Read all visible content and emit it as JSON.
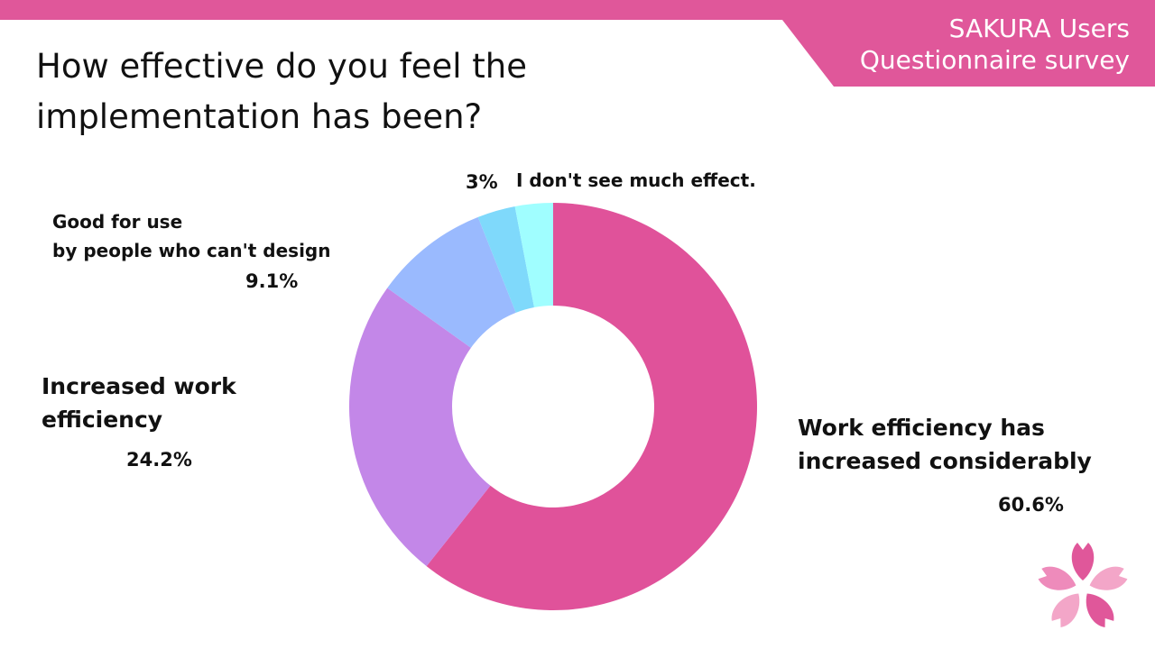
{
  "header": {
    "badge_line1": "SAKURA Users",
    "badge_line2": "Questionnaire survey",
    "title_line1": "How effective do you feel the",
    "title_line2": "implementation has been?"
  },
  "colors": {
    "brand": "#e0579a",
    "slice_considerable": "#e0529a",
    "slice_increased": "#c387e8",
    "slice_design": "#9abafe",
    "slice_small": "#7fd9fb",
    "slice_none": "#a0feff"
  },
  "chart_data": {
    "type": "pie",
    "donut": true,
    "title": "How effective do you feel the implementation has been?",
    "slices": [
      {
        "label_lines": [
          "Work efficiency has",
          "increased considerably"
        ],
        "value": 60.6,
        "value_label": "60.6%",
        "color": "#e0529a"
      },
      {
        "label_lines": [
          "Increased work",
          "efficiency"
        ],
        "value": 24.2,
        "value_label": "24.2%",
        "color": "#c387e8"
      },
      {
        "label_lines": [
          "Good for use",
          "by people who can't design"
        ],
        "value": 9.1,
        "value_label": "9.1%",
        "color": "#9abafe"
      },
      {
        "label_lines": [],
        "value": 3.0,
        "value_label": "",
        "color": "#7fd9fb"
      },
      {
        "label_lines": [
          "I don't see much effect."
        ],
        "value": 3.0,
        "value_label": "3%",
        "color": "#a0feff"
      }
    ]
  }
}
